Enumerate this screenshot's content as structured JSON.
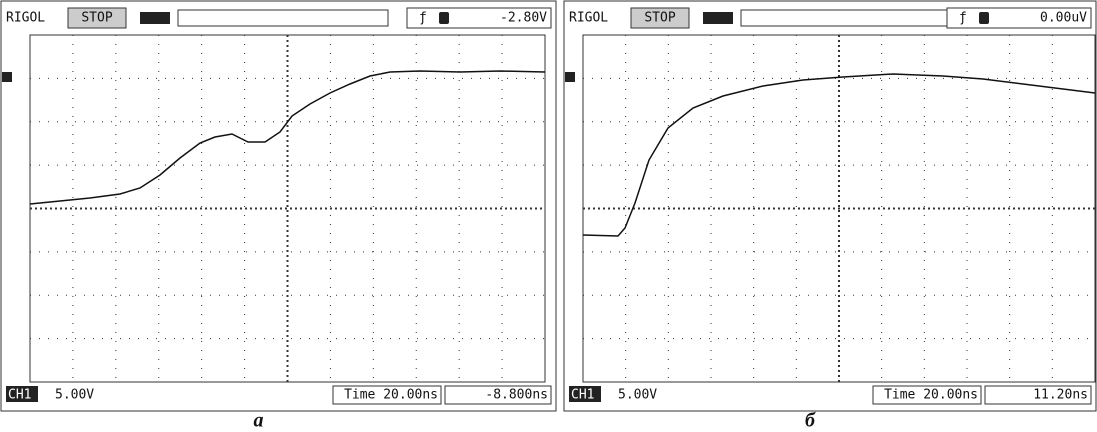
{
  "panels": [
    {
      "header": {
        "brand": "RIGOL",
        "status": "STOP",
        "trigger_level": "-2.80V"
      },
      "footer": {
        "channel": "CH1",
        "scale": "5.00V",
        "time": "Time 20.00ns",
        "offset": "-8.800ns"
      },
      "caption": "а"
    },
    {
      "header": {
        "brand": "RIGOL",
        "status": "STOP",
        "trigger_level": "0.00uV"
      },
      "footer": {
        "channel": "CH1",
        "scale": "5.00V",
        "time": "Time 20.00ns",
        "offset": "11.20ns"
      },
      "caption": "б"
    }
  ]
}
